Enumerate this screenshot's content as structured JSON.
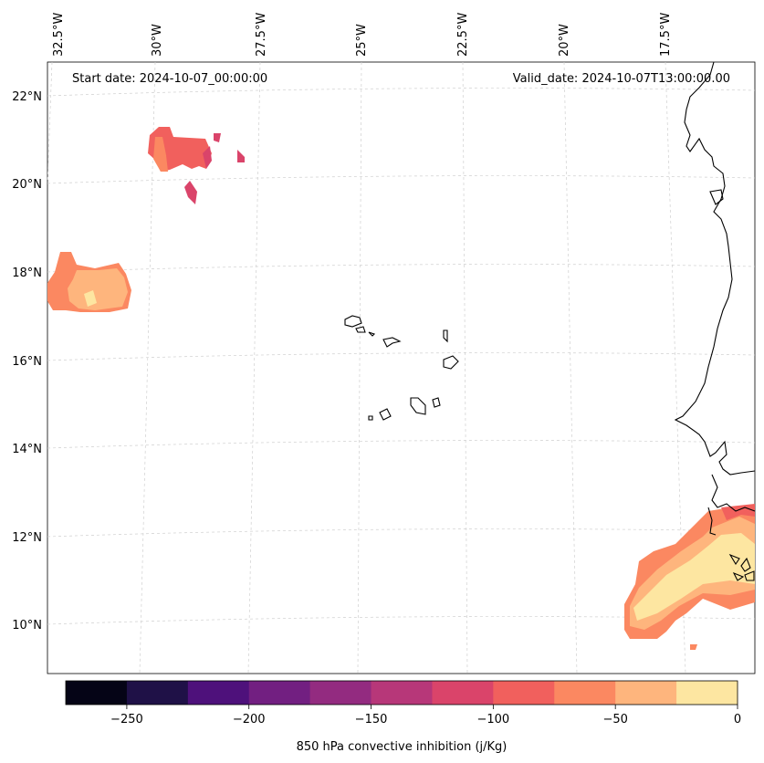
{
  "header": {
    "start_date": "Start date: 2024-10-07_00:00:00",
    "valid_date": "Valid_date: 2024-10-07T13:00:00.00"
  },
  "lon_labels": [
    "32.5°W",
    "30°W",
    "27.5°W",
    "25°W",
    "22.5°W",
    "20°W",
    "17.5°W"
  ],
  "lat_labels": [
    "22°N",
    "20°N",
    "18°N",
    "16°N",
    "14°N",
    "12°N",
    "10°N"
  ],
  "colorbar": {
    "title": "850 hPa convective inhibition (j/Kg)",
    "ticks": [
      "−250",
      "−200",
      "−150",
      "−100",
      "−50",
      "0"
    ],
    "colors": [
      "#050416",
      "#1f1147",
      "#4e117b",
      "#721f81",
      "#932b80",
      "#b73779",
      "#da446a",
      "#f1605d",
      "#fb8861",
      "#feb57d",
      "#fde6a1"
    ],
    "range": [
      -275,
      0
    ]
  }
}
